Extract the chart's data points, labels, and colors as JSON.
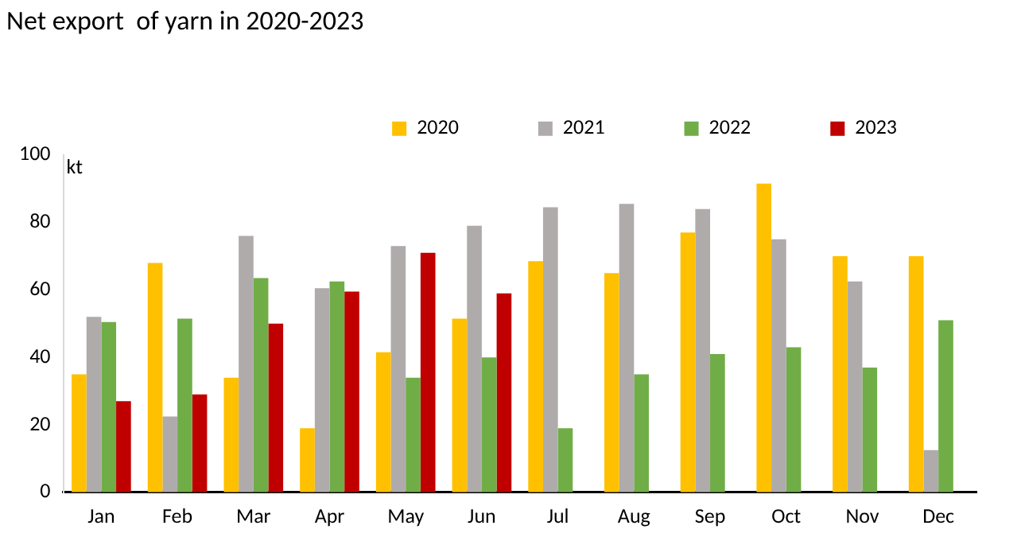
{
  "chart_data": {
    "type": "bar",
    "title": "Net export  of yarn in 2020-2023",
    "ylabel": "kt",
    "categories": [
      "Jan",
      "Feb",
      "Mar",
      "Apr",
      "May",
      "Jun",
      "Jul",
      "Aug",
      "Sep",
      "Oct",
      "Nov",
      "Dec"
    ],
    "series": [
      {
        "name": "2020",
        "color": "#ffc000",
        "values": [
          35,
          68,
          34,
          19,
          41.5,
          51.5,
          68.5,
          65,
          77,
          91.5,
          70,
          70
        ]
      },
      {
        "name": "2021",
        "color": "#afabab",
        "values": [
          52,
          22.5,
          76,
          60.5,
          73,
          79,
          84.5,
          85.5,
          84,
          75,
          62.5,
          12.5
        ]
      },
      {
        "name": "2022",
        "color": "#70ad47",
        "values": [
          50.5,
          51.5,
          63.5,
          62.5,
          34,
          40,
          19,
          35,
          41,
          43,
          37,
          51
        ]
      },
      {
        "name": "2023",
        "color": "#c00000",
        "values": [
          27,
          29,
          50,
          59.5,
          71,
          59,
          null,
          null,
          null,
          null,
          null,
          null
        ]
      }
    ],
    "ylim": [
      0,
      100
    ],
    "yticks": [
      0,
      20,
      40,
      60,
      80,
      100
    ],
    "grid": false,
    "legend": "top"
  }
}
